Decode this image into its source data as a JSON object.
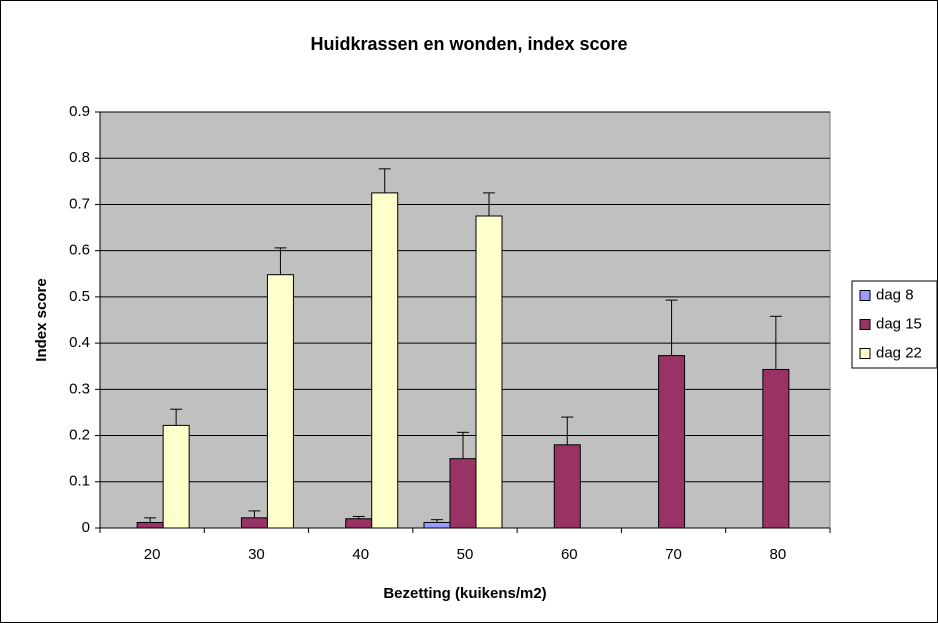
{
  "chart_data": {
    "type": "bar",
    "title": "Huidkrassen en wonden, index score",
    "x_label": "Bezetting (kuikens/m2)",
    "y_label": "Index score",
    "categories": [
      "20",
      "30",
      "40",
      "50",
      "60",
      "70",
      "80"
    ],
    "series": [
      {
        "name": "dag 8",
        "color": "#9999ff",
        "values": [
          0,
          0,
          0,
          0.012,
          0,
          0,
          0
        ],
        "errors": [
          null,
          null,
          null,
          0.006,
          null,
          null,
          null
        ]
      },
      {
        "name": "dag 15",
        "color": "#993366",
        "values": [
          0.012,
          0.022,
          0.02,
          0.15,
          0.18,
          0.373,
          0.343
        ],
        "errors": [
          0.01,
          0.015,
          0.005,
          0.057,
          0.06,
          0.12,
          0.115
        ]
      },
      {
        "name": "dag 22",
        "color": "#ffffcc",
        "values": [
          0.222,
          0.548,
          0.725,
          0.675,
          null,
          null,
          null
        ],
        "errors": [
          0.035,
          0.058,
          0.052,
          0.05,
          null,
          null,
          null
        ]
      }
    ],
    "ylim": [
      0,
      0.9
    ],
    "yticks": [
      0,
      0.1,
      0.2,
      0.3,
      0.4,
      0.5,
      0.6,
      0.7,
      0.8,
      0.9
    ],
    "grid": true,
    "legend": "right",
    "plot_background": "#c0c0c0"
  }
}
